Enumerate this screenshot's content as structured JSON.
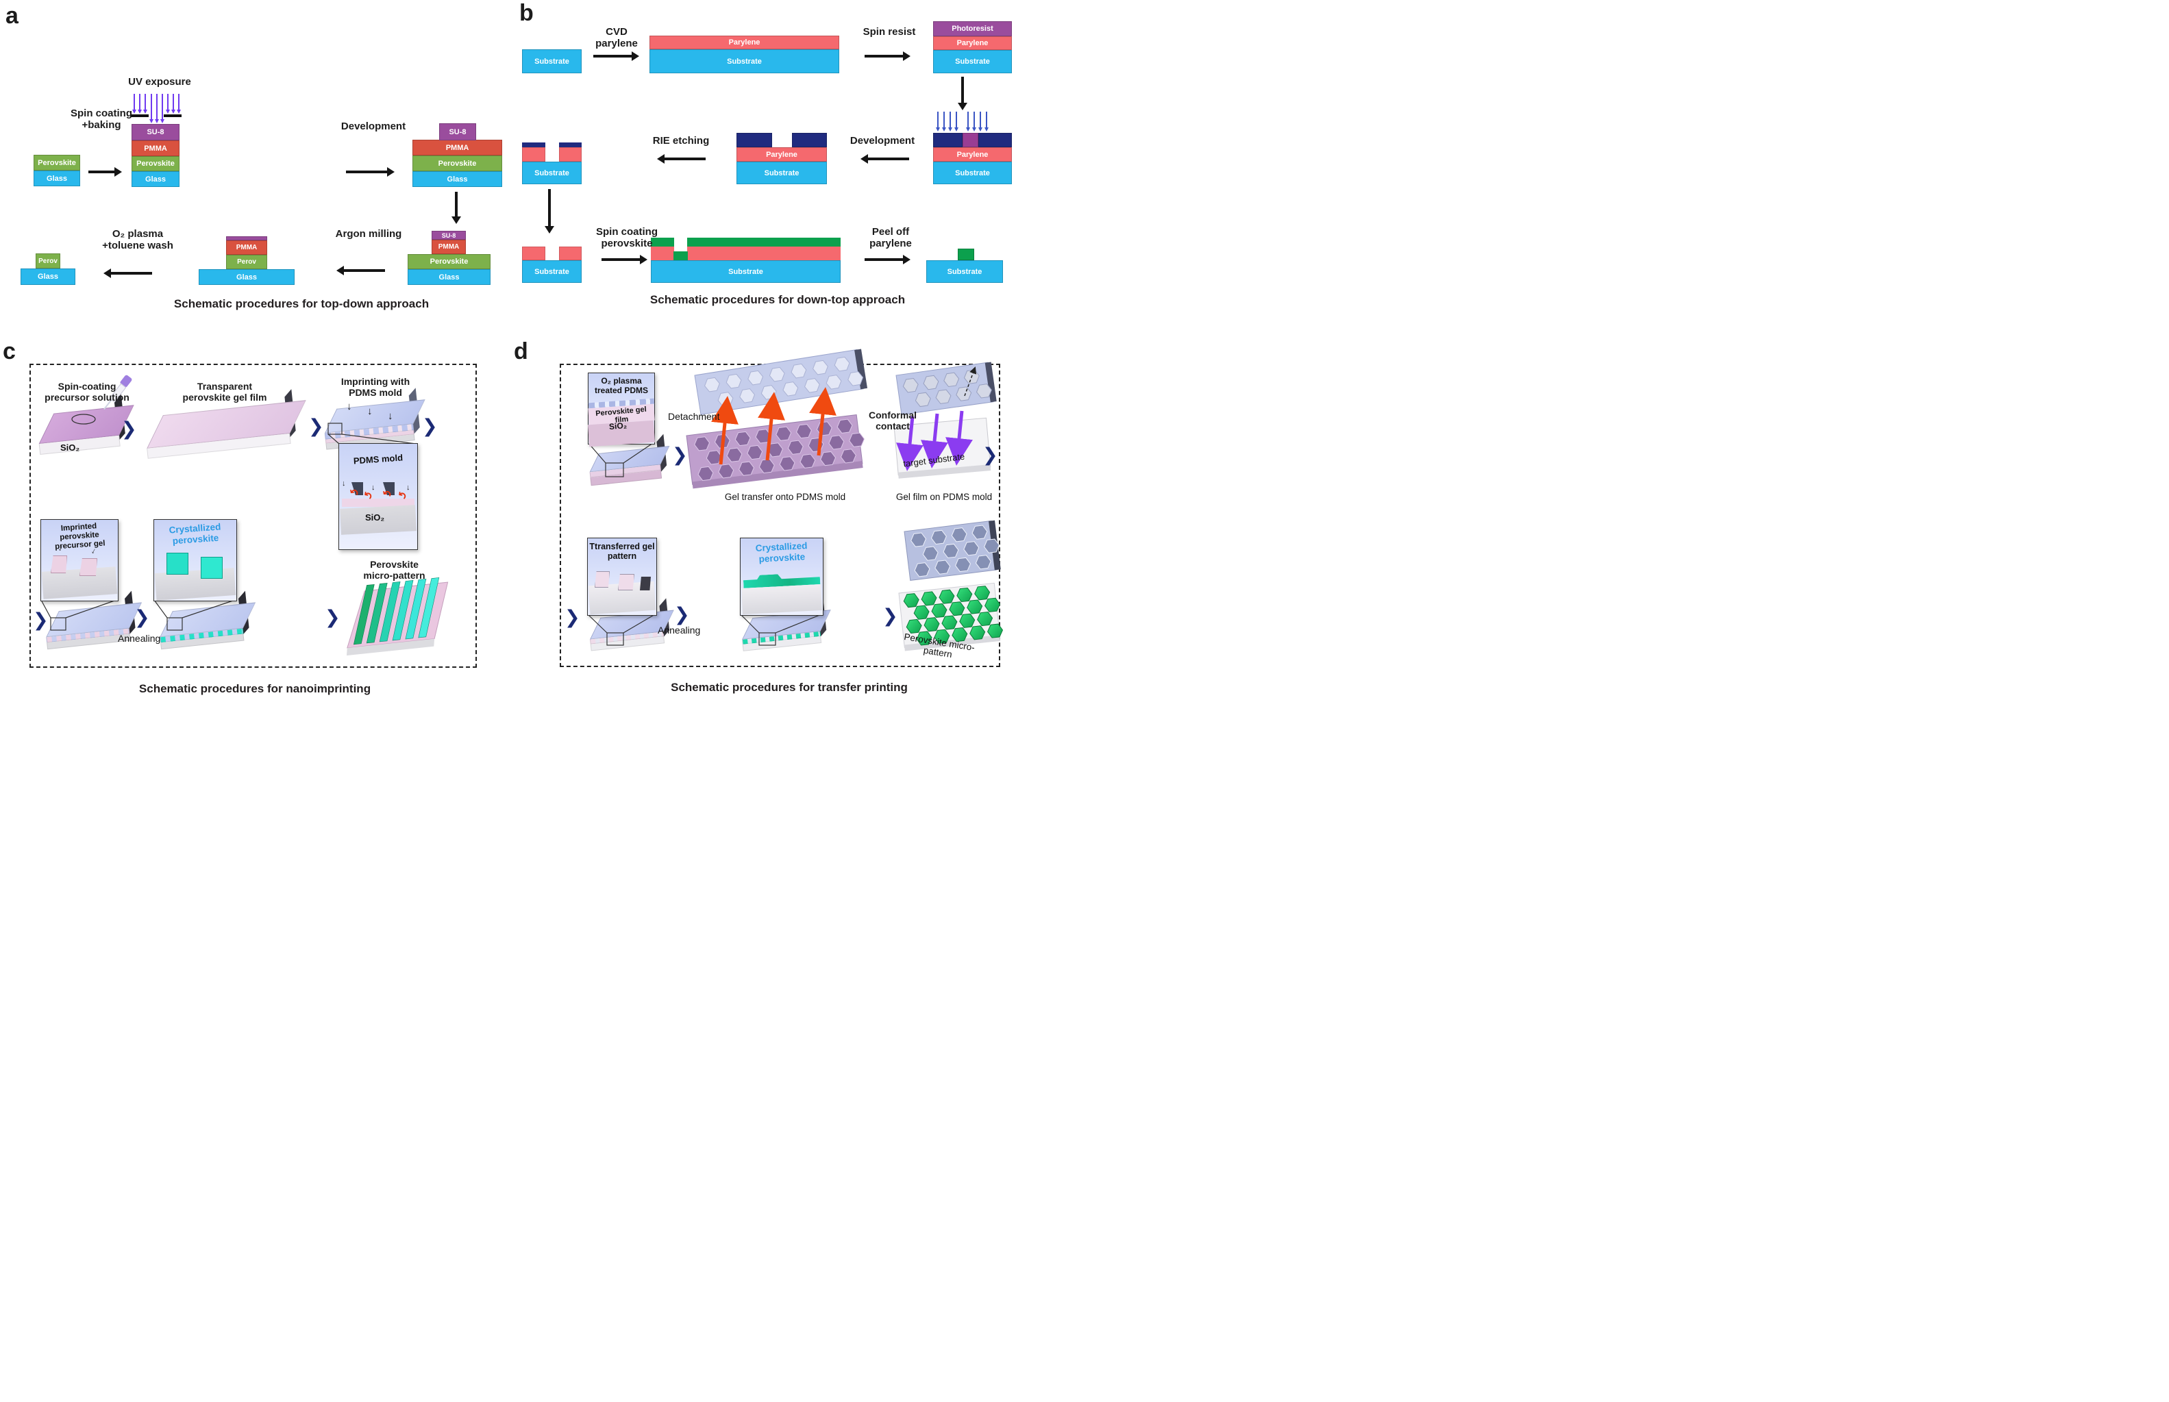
{
  "figure": {
    "panel_a": {
      "label": "a",
      "caption": "Schematic procedures for top-down approach",
      "steps": {
        "spin_coating_l1": "Spin coating",
        "spin_coating_l2": "+baking",
        "uv_exposure": "UV exposure",
        "development": "Development",
        "argon_milling": "Argon milling",
        "o2_plasma_l1": "O₂ plasma",
        "o2_plasma_l2": "+toluene wash"
      }
    },
    "panel_b": {
      "label": "b",
      "caption": "Schematic procedures for down-top approach",
      "steps": {
        "cvd": "CVD parylene",
        "spin_resist": "Spin resist",
        "development": "Development",
        "rie": "RIE etching",
        "spin_perovskite_l1": "Spin coating",
        "spin_perovskite_l2": "perovskite",
        "peel_l1": "Peel off",
        "peel_l2": "parylene"
      }
    },
    "panel_c": {
      "label": "c",
      "caption": "Schematic procedures for nanoimprinting",
      "steps": {
        "step1_l1": "Spin-coating",
        "step1_l2": "precursor solution",
        "step2_l1": "Transparent",
        "step2_l2": "perovskite gel film",
        "step3_l1": "Imprinting with",
        "step3_l2": "PDMS mold",
        "inset_pdms": "PDMS mold",
        "imprinted_l1": "Imprinted perovskite",
        "imprinted_l2": "precursor gel",
        "crystallized_l1": "Crystallized",
        "crystallized_l2": "perovskite",
        "annealing": "Annealing",
        "final_l1": "Perovskite",
        "final_l2": "micro-pattern"
      },
      "sio2": "SiO₂"
    },
    "panel_d": {
      "label": "d",
      "caption": "Schematic procedures for transfer printing",
      "steps": {
        "inset1_l1": "O₂ plasma",
        "inset1_l2": "treated PDMS",
        "inset1_gel": "Perovskite gel film",
        "inset1_sio2": "SiO₂",
        "detachment": "Detachment",
        "conformal_l1": "Conformal",
        "conformal_l2": "contact",
        "target_substrate": "target substrate",
        "cap_transfer": "Gel transfer onto PDMS mold",
        "cap_gelfilm": "Gel film on PDMS mold",
        "transferred_l1": "Ttransferred gel",
        "transferred_l2": "pattern",
        "crystallized_l1": "Crystallized",
        "crystallized_l2": "perovskite",
        "annealing": "Annealing",
        "final": "Perovskite micro-pattern"
      }
    },
    "layers": {
      "perovskite": "Perovskite",
      "glass": "Glass",
      "su8": "SU-8",
      "pmma": "PMMA",
      "perov": "Perov",
      "substrate": "Substrate",
      "parylene": "Parylene",
      "photoresist": "Photoresist"
    },
    "glyphs": {
      "chevron": "❯",
      "down_arrow": "↓",
      "curve_arrow": "↶"
    },
    "colors": {
      "substrate_cyan": "#29b8ec",
      "perovskite_green": "#7db14b",
      "pmma_red": "#d9523f",
      "su8_purple": "#9a4d9d",
      "parylene_salmon": "#f5696e",
      "resist_navy": "#202b7f",
      "exposed_purple": "#993d94",
      "perovskite_green_b": "#0ca04d",
      "crystal_teal": "#27e0c8",
      "hex_green": "#1ec85f",
      "pdms_periwinkle": "#c3cbe9",
      "chevron_navy": "#1b2a75",
      "uv_violet": "#6f3af0",
      "uv_blue": "#3b55c4",
      "red_arrow": "#f04a10",
      "purple_arrow": "#8b3cf0",
      "blue_label": "#2b9be4"
    }
  }
}
